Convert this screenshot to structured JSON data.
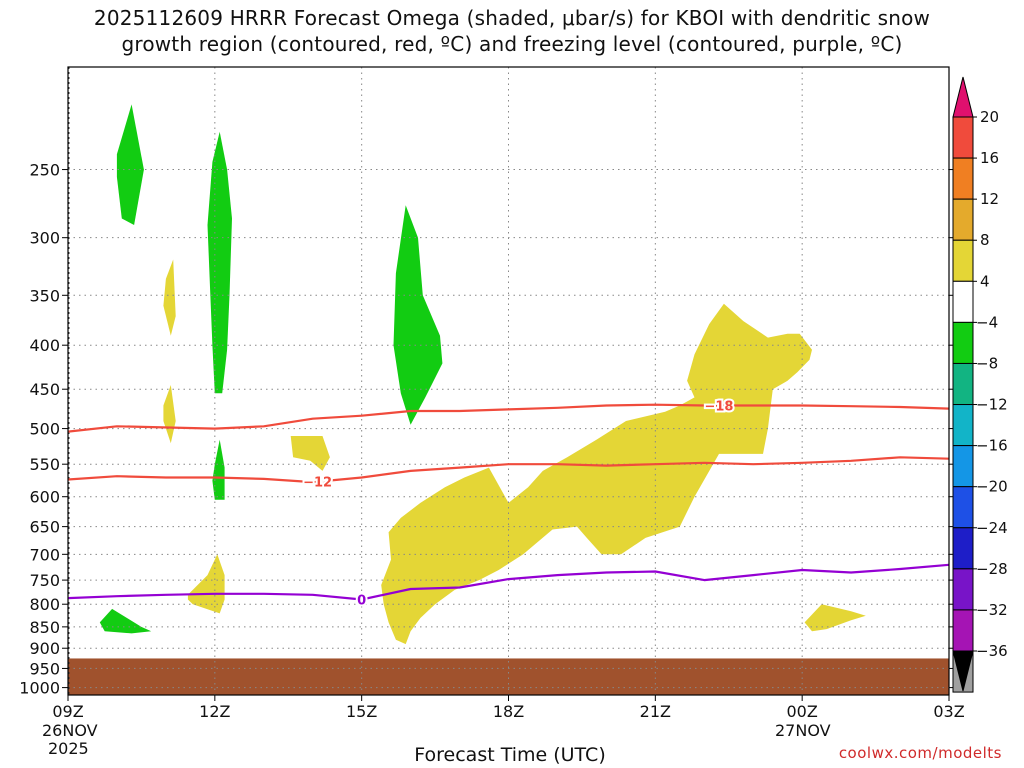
{
  "title_line1": "2025112609 HRRR Forecast Omega (shaded, μbar/s) for KBOI with dendritic snow",
  "title_line2": "growth region (contoured, red, ºC) and freezing level (contoured, purple, ºC)",
  "x_label": "Forecast Time (UTC)",
  "credit": "coolwx.com/modelts",
  "date_labels": {
    "d1_day": "26NOV",
    "d1_year": "2025",
    "d2_day": "27NOV"
  },
  "colors": {
    "omega_up": "#12cc12",
    "omega_down": "#e4d636",
    "terrain": "#a0522d",
    "isotherm": "#f04b3c",
    "freezing": "#9400d3",
    "grid": "#888888"
  },
  "chart_data": {
    "type": "heatmap",
    "x_ticks": [
      "09Z",
      "12Z",
      "15Z",
      "18Z",
      "21Z",
      "00Z",
      "03Z"
    ],
    "x_hours": [
      0,
      3,
      6,
      9,
      12,
      15,
      18
    ],
    "y_ticks": [
      250,
      300,
      350,
      400,
      450,
      500,
      550,
      600,
      650,
      700,
      750,
      800,
      850,
      900,
      950,
      1000
    ],
    "y_range_hpa": [
      1020,
      190
    ],
    "y_scale": "log",
    "surface_pressure_hpa": 925,
    "grid": true,
    "colorbar": {
      "labels": [
        20,
        16,
        12,
        8,
        4,
        -4,
        -8,
        -12,
        -16,
        -20,
        -24,
        -28,
        -32,
        -36
      ],
      "colors": [
        "#e0106e",
        "#f04b3c",
        "#f07f22",
        "#e4aa2c",
        "#e4d636",
        "#ffffff",
        "#12cc12",
        "#12b482",
        "#12b4c8",
        "#1496e6",
        "#1e50e6",
        "#1e1ec8",
        "#7814c8",
        "#a514b4",
        "#a0a0a0",
        "#000000"
      ]
    },
    "contours": [
      {
        "label": "-18",
        "label_hour": 13.3,
        "points": [
          [
            0,
            504
          ],
          [
            1,
            497
          ],
          [
            3,
            500
          ],
          [
            4,
            497
          ],
          [
            5,
            487
          ],
          [
            6,
            483
          ],
          [
            7,
            477
          ],
          [
            8,
            477
          ],
          [
            9,
            475
          ],
          [
            10,
            473
          ],
          [
            11,
            470
          ],
          [
            12,
            469
          ],
          [
            13,
            470
          ],
          [
            14,
            470
          ],
          [
            15,
            470
          ],
          [
            16,
            471
          ],
          [
            17,
            472
          ],
          [
            18,
            474
          ]
        ]
      },
      {
        "label": "-12",
        "label_hour": 5.1,
        "points": [
          [
            0,
            573
          ],
          [
            1,
            568
          ],
          [
            2,
            570
          ],
          [
            3,
            570
          ],
          [
            4,
            572
          ],
          [
            5,
            577
          ],
          [
            6,
            570
          ],
          [
            7,
            560
          ],
          [
            8,
            555
          ],
          [
            9,
            550
          ],
          [
            10,
            550
          ],
          [
            11,
            552
          ],
          [
            12,
            550
          ],
          [
            13,
            548
          ],
          [
            14,
            550
          ],
          [
            15,
            548
          ],
          [
            16,
            545
          ],
          [
            17,
            540
          ],
          [
            18,
            542
          ]
        ]
      },
      {
        "label": "0",
        "label_hour": 6.0,
        "points": [
          [
            0,
            787
          ],
          [
            1,
            783
          ],
          [
            2,
            780
          ],
          [
            3,
            778
          ],
          [
            4,
            778
          ],
          [
            5,
            780
          ],
          [
            6,
            790
          ],
          [
            7,
            768
          ],
          [
            8,
            765
          ],
          [
            9,
            748
          ],
          [
            10,
            740
          ],
          [
            11,
            735
          ],
          [
            12,
            733
          ],
          [
            13,
            750
          ],
          [
            14,
            740
          ],
          [
            15,
            730
          ],
          [
            16,
            735
          ],
          [
            17,
            728
          ],
          [
            18,
            720
          ]
        ]
      }
    ],
    "shaded_regions": [
      {
        "category": "-8 to -4",
        "points": [
          [
            1.0,
            240
          ],
          [
            1.3,
            210
          ],
          [
            1.55,
            250
          ],
          [
            1.35,
            290
          ],
          [
            1.1,
            285
          ],
          [
            1.0,
            255
          ]
        ]
      },
      {
        "category": "-8 to -4",
        "points": [
          [
            2.95,
            245
          ],
          [
            3.1,
            226
          ],
          [
            3.25,
            250
          ],
          [
            3.35,
            285
          ],
          [
            3.3,
            350
          ],
          [
            3.25,
            405
          ],
          [
            3.15,
            455
          ],
          [
            3.0,
            455
          ],
          [
            2.95,
            400
          ],
          [
            2.9,
            340
          ],
          [
            2.85,
            290
          ]
        ]
      },
      {
        "category": "-8 to -4",
        "points": [
          [
            3.0,
            550
          ],
          [
            3.1,
            515
          ],
          [
            3.2,
            555
          ],
          [
            3.2,
            605
          ],
          [
            3.0,
            605
          ],
          [
            2.95,
            575
          ]
        ]
      },
      {
        "category": "-8 to -4",
        "points": [
          [
            0.65,
            840
          ],
          [
            0.9,
            810
          ],
          [
            1.5,
            850
          ],
          [
            1.7,
            860
          ],
          [
            1.3,
            865
          ],
          [
            0.75,
            860
          ]
        ]
      },
      {
        "category": "-8 to -4",
        "points": [
          [
            6.7,
            330
          ],
          [
            6.9,
            275
          ],
          [
            7.15,
            300
          ],
          [
            7.25,
            350
          ],
          [
            7.6,
            390
          ],
          [
            7.65,
            420
          ],
          [
            7.3,
            460
          ],
          [
            7.0,
            495
          ],
          [
            6.8,
            455
          ],
          [
            6.65,
            400
          ]
        ]
      },
      {
        "category": "4 to 8",
        "points": [
          [
            2.0,
            335
          ],
          [
            2.15,
            318
          ],
          [
            2.2,
            370
          ],
          [
            2.1,
            390
          ],
          [
            1.95,
            360
          ]
        ]
      },
      {
        "category": "4 to 8",
        "points": [
          [
            1.95,
            470
          ],
          [
            2.1,
            445
          ],
          [
            2.2,
            490
          ],
          [
            2.1,
            520
          ],
          [
            1.95,
            490
          ]
        ]
      },
      {
        "category": "4 to 8",
        "points": [
          [
            4.55,
            510
          ],
          [
            5.2,
            510
          ],
          [
            5.35,
            540
          ],
          [
            5.2,
            560
          ],
          [
            4.95,
            545
          ],
          [
            4.6,
            540
          ]
        ]
      },
      {
        "category": "4 to 8",
        "points": [
          [
            2.45,
            780
          ],
          [
            2.85,
            740
          ],
          [
            3.05,
            700
          ],
          [
            3.2,
            740
          ],
          [
            3.2,
            790
          ],
          [
            3.1,
            820
          ],
          [
            2.55,
            800
          ],
          [
            2.45,
            790
          ]
        ]
      },
      {
        "category": "4 to 8",
        "points": [
          [
            15.05,
            840
          ],
          [
            15.4,
            800
          ],
          [
            16.0,
            815
          ],
          [
            16.3,
            825
          ],
          [
            16.0,
            835
          ],
          [
            15.5,
            855
          ],
          [
            15.2,
            860
          ]
        ]
      },
      {
        "category": "4 to 8",
        "points": [
          [
            6.4,
            760
          ],
          [
            6.6,
            710
          ],
          [
            6.55,
            660
          ],
          [
            6.8,
            635
          ],
          [
            7.2,
            610
          ],
          [
            7.7,
            585
          ],
          [
            8.1,
            570
          ],
          [
            8.6,
            555
          ],
          [
            9.0,
            610
          ],
          [
            9.4,
            585
          ],
          [
            9.7,
            560
          ],
          [
            10.2,
            540
          ],
          [
            10.8,
            515
          ],
          [
            11.4,
            490
          ],
          [
            12.2,
            478
          ],
          [
            12.5,
            470
          ],
          [
            12.8,
            460
          ],
          [
            12.65,
            440
          ],
          [
            12.8,
            410
          ],
          [
            13.1,
            378
          ],
          [
            13.4,
            358
          ],
          [
            13.8,
            375
          ],
          [
            14.3,
            392
          ],
          [
            14.7,
            388
          ],
          [
            14.95,
            388
          ],
          [
            15.2,
            405
          ],
          [
            15.15,
            416
          ],
          [
            14.9,
            430
          ],
          [
            14.7,
            440
          ],
          [
            14.4,
            450
          ],
          [
            14.3,
            500
          ],
          [
            14.2,
            535
          ],
          [
            13.3,
            535
          ],
          [
            12.8,
            600
          ],
          [
            12.5,
            650
          ],
          [
            11.8,
            670
          ],
          [
            11.3,
            700
          ],
          [
            10.9,
            700
          ],
          [
            10.6,
            670
          ],
          [
            10.4,
            650
          ],
          [
            9.9,
            655
          ],
          [
            9.3,
            700
          ],
          [
            8.8,
            730
          ],
          [
            8.4,
            750
          ],
          [
            7.9,
            770
          ],
          [
            7.5,
            800
          ],
          [
            7.2,
            830
          ],
          [
            7.0,
            860
          ],
          [
            6.9,
            890
          ],
          [
            6.7,
            880
          ],
          [
            6.55,
            840
          ],
          [
            6.45,
            800
          ]
        ]
      }
    ]
  }
}
